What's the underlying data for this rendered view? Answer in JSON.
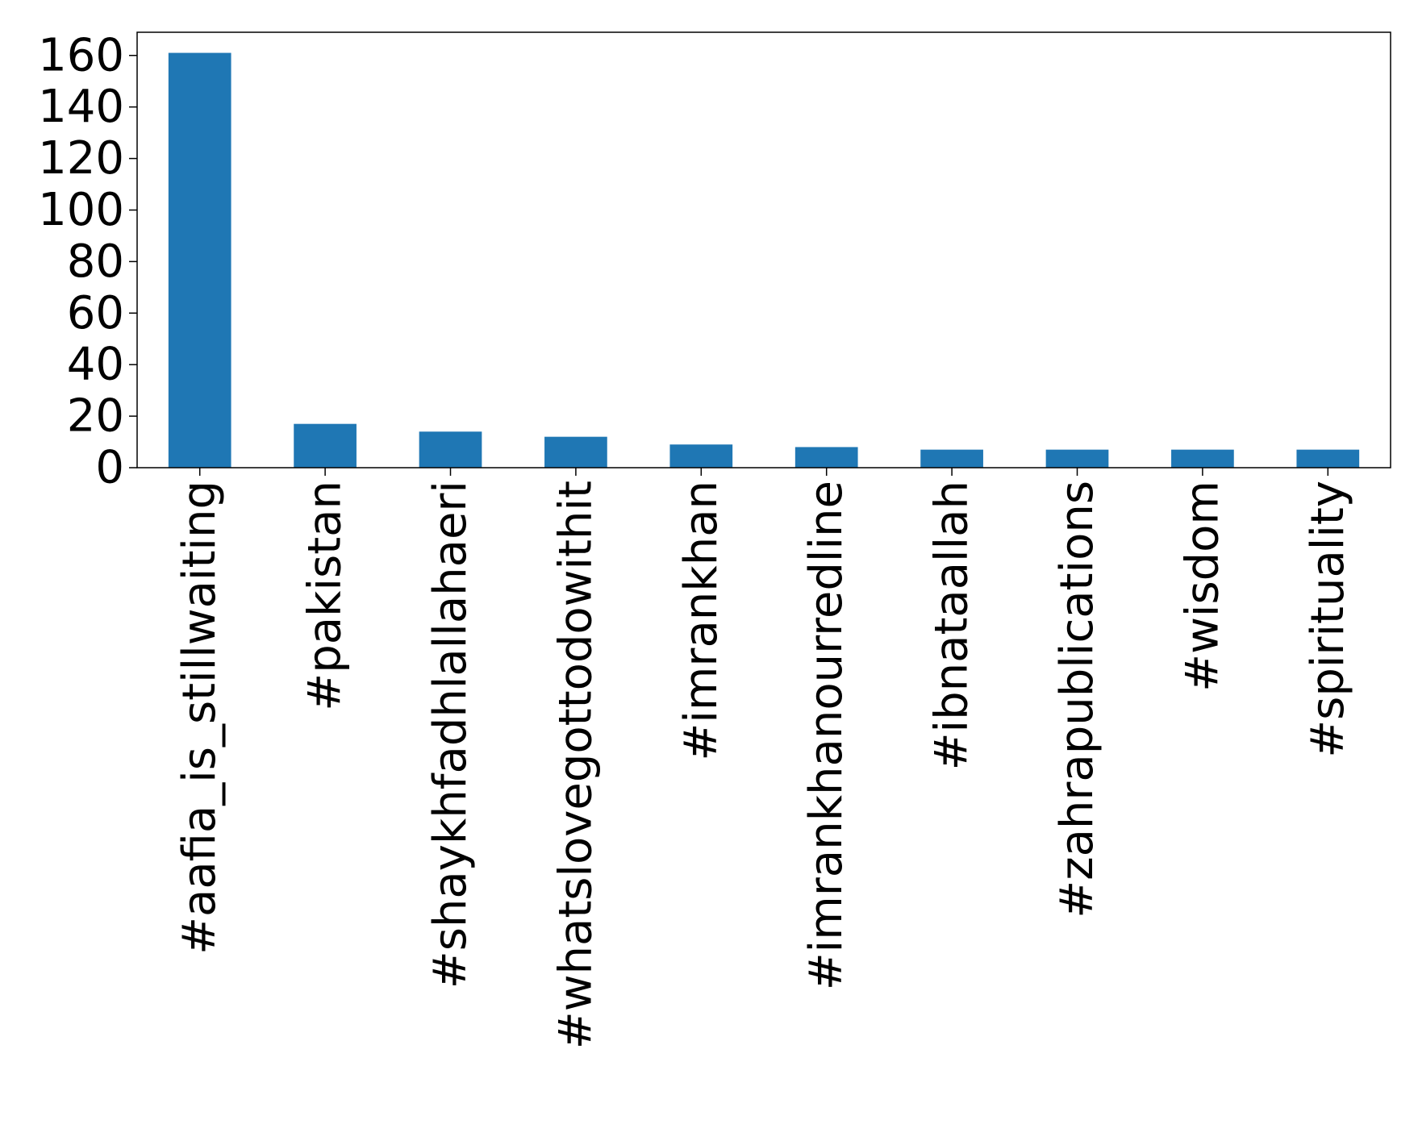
{
  "chart_data": {
    "type": "bar",
    "categories": [
      "#aafia_is_stillwaiting",
      "#pakistan",
      "#shaykhfadhlallahaeri",
      "#whatslovegottodowithit",
      "#imrankhan",
      "#imrankhanourredline",
      "#ibnataallah",
      "#zahrapublications",
      "#wisdom",
      "#spirituality"
    ],
    "values": [
      161,
      17,
      14,
      12,
      9,
      8,
      7,
      7,
      7,
      7
    ],
    "title": "",
    "xlabel": "",
    "ylabel": "",
    "ylim": [
      0,
      169
    ],
    "yticks": [
      0,
      20,
      40,
      60,
      80,
      100,
      120,
      140,
      160
    ],
    "bar_color": "#1f77b4",
    "grid": false
  }
}
